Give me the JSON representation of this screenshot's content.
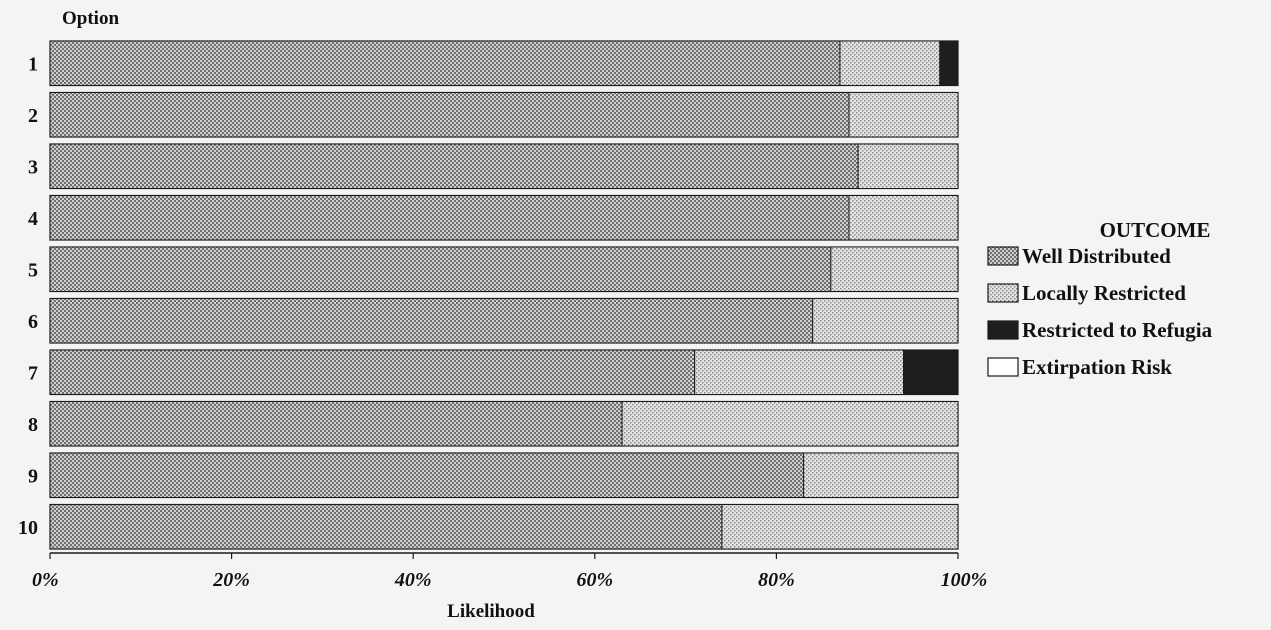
{
  "chart_data": {
    "type": "bar",
    "orientation": "horizontal",
    "stacked": true,
    "xlabel": "Likelihood",
    "ylabel": "Option",
    "xlim": [
      0,
      100
    ],
    "x_ticks": [
      "0%",
      "20%",
      "40%",
      "60%",
      "80%",
      "100%"
    ],
    "categories": [
      "1",
      "2",
      "3",
      "4",
      "5",
      "6",
      "7",
      "8",
      "9",
      "10"
    ],
    "legend": {
      "title": "OUTCOME",
      "placement": "right"
    },
    "series": [
      {
        "name": "Well Distributed",
        "pattern": "dense-dots",
        "values": [
          87,
          88,
          89,
          88,
          86,
          84,
          71,
          63,
          83,
          74
        ]
      },
      {
        "name": "Locally Restricted",
        "pattern": "light-dots",
        "values": [
          11,
          12,
          11,
          12,
          14,
          16,
          23,
          37,
          17,
          26
        ]
      },
      {
        "name": "Restricted to Refugia",
        "pattern": "solid-dark",
        "values": [
          2,
          0,
          0,
          0,
          0,
          0,
          6,
          0,
          0,
          0
        ]
      },
      {
        "name": "Extirpation Risk",
        "pattern": "white",
        "values": [
          0,
          0,
          0,
          0,
          0,
          0,
          0,
          0,
          0,
          0
        ]
      }
    ]
  }
}
